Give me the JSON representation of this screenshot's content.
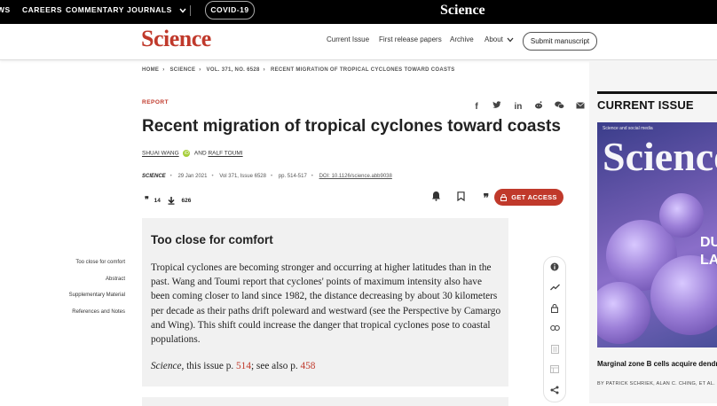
{
  "topbar": {
    "nav_items": [
      "WS",
      "CAREERS",
      "COMMENTARY",
      "JOURNALS"
    ],
    "journals_chevron_icon": "chevron-down-icon",
    "covid_label": "COVID-19",
    "logo_text": "Science"
  },
  "header": {
    "logo_text": "Science",
    "nav": [
      "Current Issue",
      "First release papers",
      "Archive",
      "About"
    ],
    "submit_label": "Submit manuscript"
  },
  "breadcrumb": [
    "HOME",
    "SCIENCE",
    "VOL. 371, NO. 6528",
    "RECENT MIGRATION OF TROPICAL CYCLONES TOWARD COASTS"
  ],
  "article": {
    "type": "REPORT",
    "title": "Recent migration of tropical cyclones toward coasts",
    "authors": {
      "first": "SHUAI WANG",
      "and": "AND",
      "second": "RALF TOUMI"
    },
    "meta": {
      "journal": "SCIENCE",
      "date": "29 Jan 2021",
      "volume": "Vol 371, Issue 6528",
      "pages": "pp. 514-517",
      "doi": "DOI: 10.1126/science.abb9038"
    },
    "metrics": {
      "citations": "14",
      "downloads": "626"
    },
    "get_access": "GET ACCESS"
  },
  "social_icons": [
    "facebook-icon",
    "twitter-icon",
    "linkedin-icon",
    "reddit-icon",
    "wechat-icon",
    "email-icon"
  ],
  "toc": [
    "Too close for comfort",
    "Abstract",
    "Supplementary Material",
    "References and Notes"
  ],
  "abstract": {
    "title": "Too close for comfort",
    "text": "Tropical cyclones are becoming stronger and occurring at higher latitudes than in the past. Wang and Toumi report that cyclones' points of maximum intensity also have been coming closer to land since 1982, the distance decreasing by about 30 kilometers per decade as their paths drift poleward and westward (see the Perspective by Camargo and Wing). This shift could increase the danger that tropical cyclones pose to coastal populations.",
    "ref_journal": "Science",
    "ref_mid": ", this issue p. ",
    "ref_page1": "514",
    "ref_see": "; see also p. ",
    "ref_page2": "458"
  },
  "current_issue": {
    "heading": "CURRENT ISSUE",
    "cover_word": "Science",
    "cover_side": "DUA LAT",
    "cover_top": "Science and social media",
    "article_title": "Marginal zone B cells acquire dendri by trogocytosis",
    "authors": "BY PATRICK SCHRIEK, ALAN C. CHING, ET AL."
  },
  "rail_icons": [
    "info-icon",
    "trend-icon",
    "lock-icon",
    "link-icon",
    "layers-icon",
    "table-icon",
    "share-icon"
  ],
  "colors": {
    "accent": "#c0392b",
    "topbar": "#000000",
    "abstract_bg": "#f1f1f1",
    "panel_bg": "#f5f5f5"
  }
}
